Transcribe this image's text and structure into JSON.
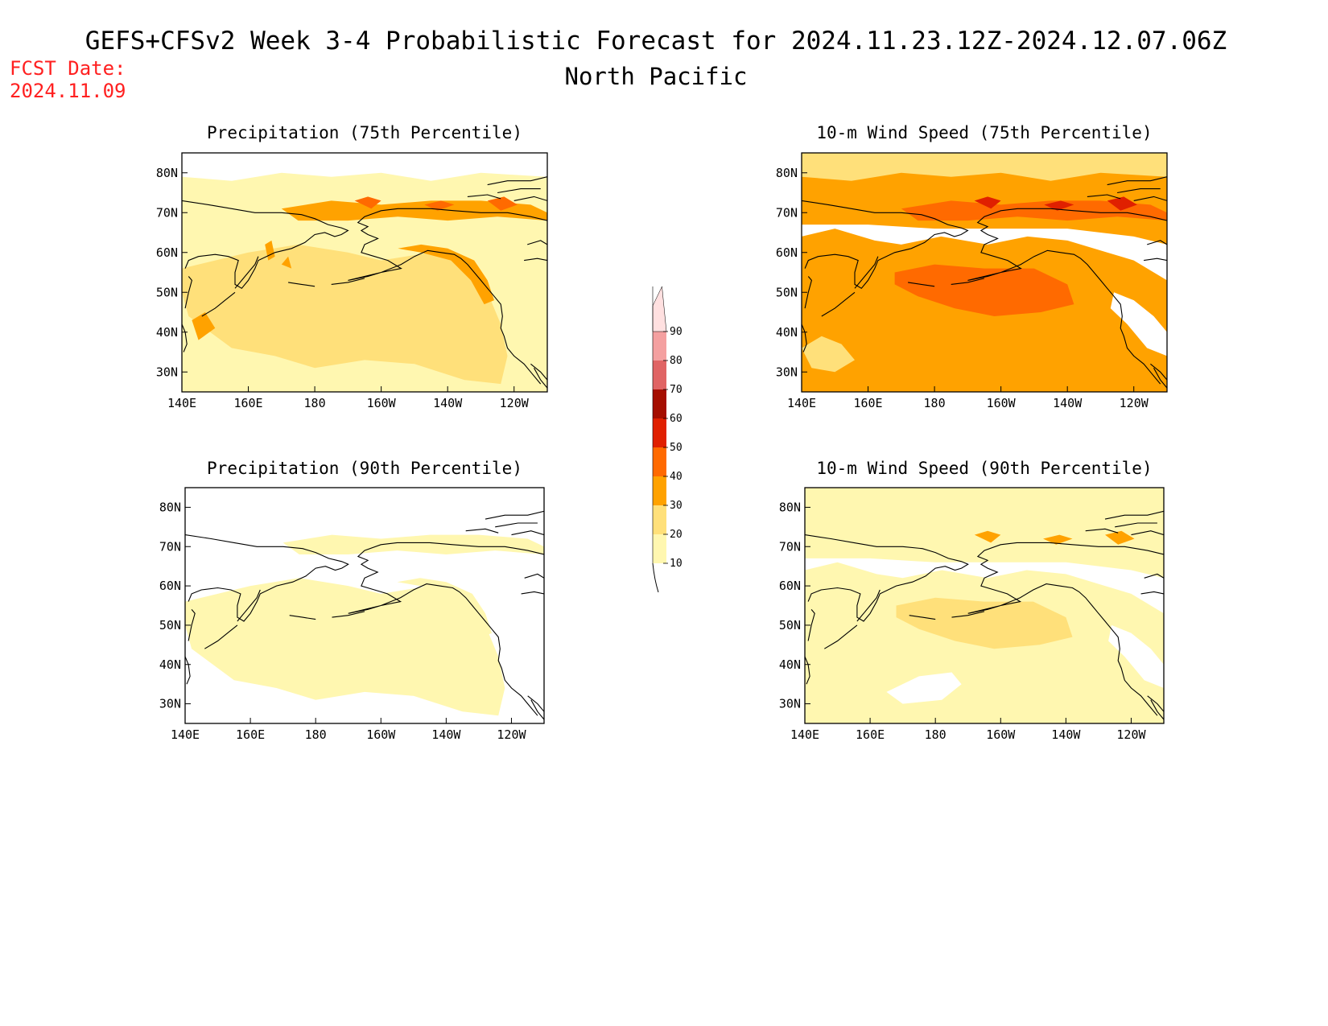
{
  "header": {
    "title_line1": "GEFS+CFSv2 Week 3-4 Probabilistic Forecast for 2024.11.23.12Z-2024.12.07.06Z",
    "title_line2": "North Pacific",
    "fcst_label": "FCST Date:",
    "fcst_date": "2024.11.09",
    "fcst_color": "#ff2020"
  },
  "axes": {
    "x_ticks": [
      "140E",
      "160E",
      "180",
      "160W",
      "140W",
      "120W"
    ],
    "y_ticks": [
      "80N",
      "70N",
      "60N",
      "50N",
      "40N",
      "30N"
    ]
  },
  "panels": [
    {
      "id": "precip-75",
      "title": "Precipitation (75th Percentile)",
      "background_level": 1,
      "blobs": [
        {
          "level": 0,
          "shape": "strip-north"
        },
        {
          "level": 2,
          "shape": "main-ocean"
        },
        {
          "level": 3,
          "shape": "arctic-band"
        },
        {
          "level": 4,
          "shape": "arctic-spots"
        },
        {
          "level": 3,
          "shape": "coast-band"
        },
        {
          "level": 3,
          "shape": "west-spots"
        }
      ]
    },
    {
      "id": "wind-75",
      "title": "10-m Wind Speed (75th Percentile)",
      "background_level": 3,
      "blobs": [
        {
          "level": 2,
          "shape": "strip-north"
        },
        {
          "level": 4,
          "shape": "central-core"
        },
        {
          "level": 0,
          "shape": "land-pale"
        },
        {
          "level": 4,
          "shape": "arctic-band"
        },
        {
          "level": 5,
          "shape": "arctic-spots"
        },
        {
          "level": 2,
          "shape": "south-west"
        }
      ]
    },
    {
      "id": "precip-90",
      "title": "Precipitation (90th Percentile)",
      "background_level": 0,
      "blobs": [
        {
          "level": 1,
          "shape": "main-ocean"
        },
        {
          "level": 1,
          "shape": "arctic-band"
        },
        {
          "level": 1,
          "shape": "coast-band"
        }
      ]
    },
    {
      "id": "wind-90",
      "title": "10-m Wind Speed (90th Percentile)",
      "background_level": 1,
      "blobs": [
        {
          "level": 0,
          "shape": "land-pale"
        },
        {
          "level": 0,
          "shape": "south-gap"
        },
        {
          "level": 2,
          "shape": "central-core"
        },
        {
          "level": 3,
          "shape": "arctic-spots"
        }
      ]
    }
  ],
  "colorbar": {
    "labels": [
      "10",
      "20",
      "30",
      "40",
      "50",
      "60",
      "70",
      "80",
      "90"
    ],
    "colors": [
      "#fff7b0",
      "#ffe07a",
      "#ffa200",
      "#ff6a00",
      "#e02000",
      "#a50e00",
      "#e06464",
      "#f4a0a0",
      "#ffe0e0"
    ]
  },
  "level_colors": [
    "#ffffff",
    "#fff7b0",
    "#ffe07a",
    "#ffa200",
    "#ff6a00",
    "#e02000",
    "#a50e00"
  ]
}
